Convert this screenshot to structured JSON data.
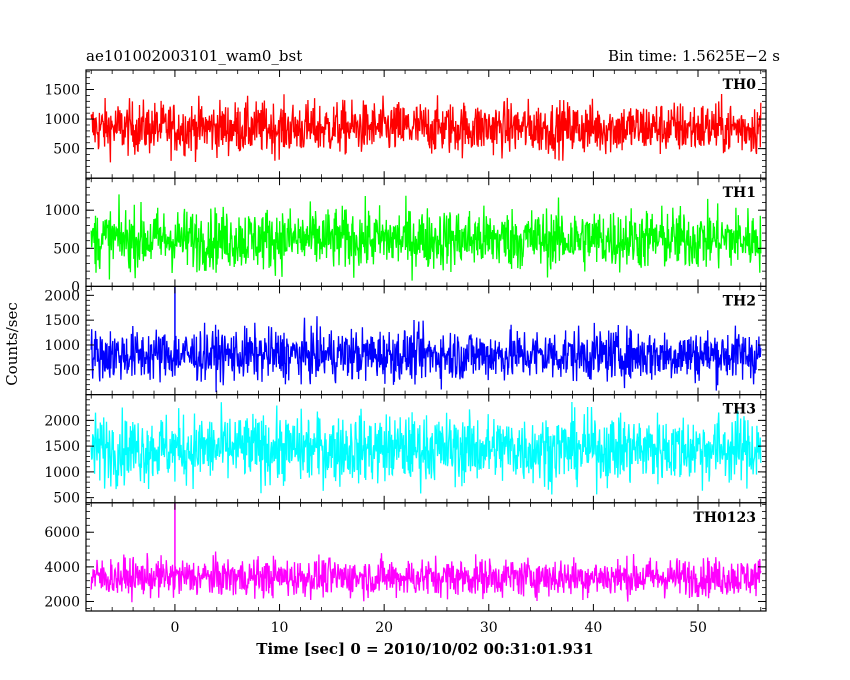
{
  "header": {
    "title": "ae101002003101_wam0_bst",
    "bin_time": "Bin time: 1.5625E−2 s"
  },
  "chart_data": {
    "type": "line",
    "xlabel": "Time [sec] 0 = 2010/10/02 00:31:01.931",
    "ylabel": "Counts/sec",
    "xlim": [
      -8.5,
      56.5
    ],
    "xticks": [
      0,
      10,
      20,
      30,
      40,
      50
    ],
    "x_start": -8.0,
    "x_end": 56.0,
    "grid": false,
    "panels": [
      {
        "name": "TH0",
        "color": "#ff0000",
        "ylim": [
          0,
          1830
        ],
        "yticks": [
          500,
          1000,
          1500
        ],
        "mean": 850,
        "noise_sd": 220,
        "min": 120,
        "max": 1750,
        "spikes": []
      },
      {
        "name": "TH1",
        "color": "#00ff00",
        "ylim": [
          0,
          1420
        ],
        "yticks": [
          0,
          500,
          1000
        ],
        "mean": 620,
        "noise_sd": 200,
        "min": 40,
        "max": 1400,
        "spikes": []
      },
      {
        "name": "TH2",
        "color": "#0000ff",
        "ylim": [
          0,
          2180
        ],
        "yticks": [
          500,
          1000,
          1500,
          2000
        ],
        "mean": 800,
        "noise_sd": 260,
        "min": 50,
        "max": 1950,
        "spikes": [
          {
            "x": 0.0,
            "y": 2180
          }
        ]
      },
      {
        "name": "TH3",
        "color": "#00ffff",
        "ylim": [
          400,
          2500
        ],
        "yticks": [
          500,
          1000,
          1500,
          2000
        ],
        "mean": 1450,
        "noise_sd": 330,
        "min": 450,
        "max": 2480,
        "spikes": []
      },
      {
        "name": "TH0123",
        "color": "#ff00ff",
        "ylim": [
          1450,
          7700
        ],
        "yticks": [
          2000,
          4000,
          6000
        ],
        "mean": 3400,
        "noise_sd": 550,
        "min": 1650,
        "max": 5700,
        "spikes": [
          {
            "x": 0.0,
            "y": 7700
          }
        ]
      }
    ]
  }
}
